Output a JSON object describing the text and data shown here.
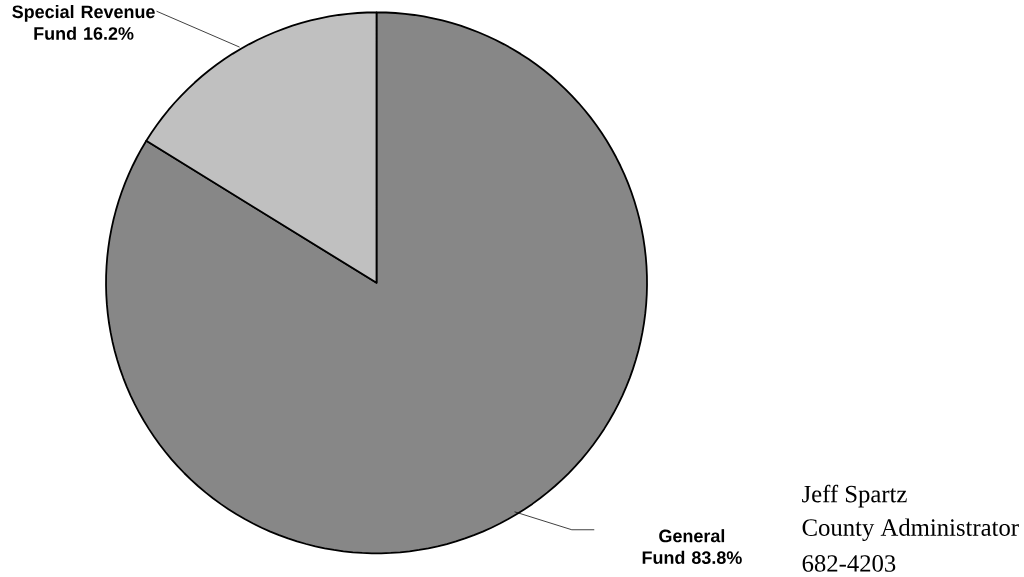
{
  "chart_data": {
    "type": "pie",
    "categories": [
      "General Fund",
      "Special Revenue Fund"
    ],
    "values": [
      83.8,
      16.2
    ],
    "value_labels": [
      "83.8%",
      "16.2%"
    ],
    "colors": [
      "#878787",
      "#c0c0c0"
    ],
    "annotations": [
      "Jeff Spartz",
      "County Administrator",
      "682-4203"
    ]
  }
}
